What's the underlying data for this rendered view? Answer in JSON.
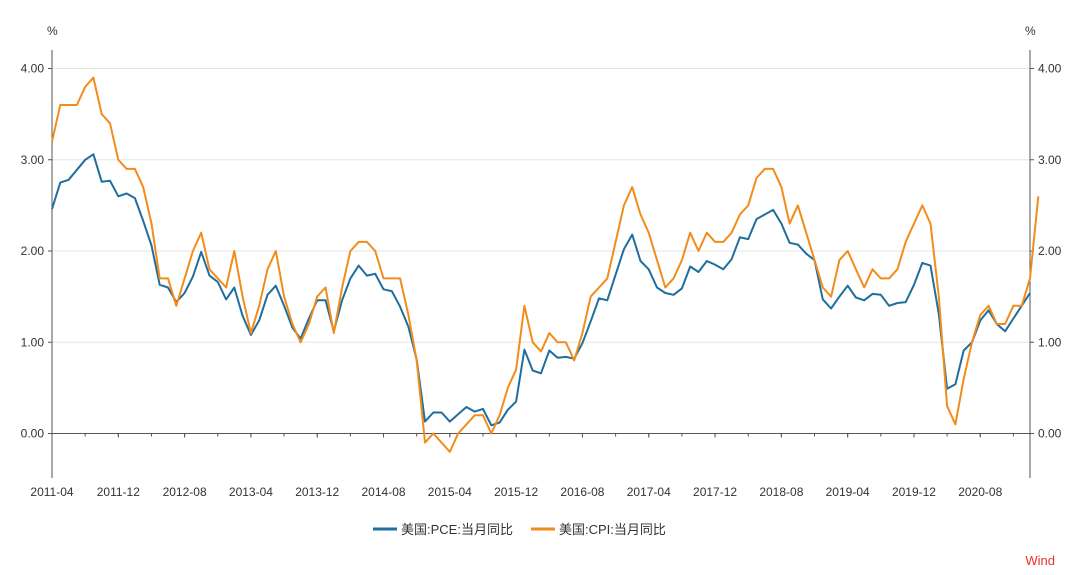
{
  "chart_data": {
    "type": "line",
    "unit_left": "%",
    "unit_right": "%",
    "ylim": [
      -0.5,
      4.2
    ],
    "y_ticks": [
      "0.00",
      "1.00",
      "2.00",
      "3.00",
      "4.00"
    ],
    "x_tick_labels": [
      "2011-04",
      "2011-12",
      "2012-08",
      "2013-04",
      "2013-12",
      "2014-08",
      "2015-04",
      "2015-12",
      "2016-08",
      "2017-04",
      "2017-12",
      "2018-08",
      "2019-04",
      "2019-12",
      "2020-08"
    ],
    "x_start": "2011-04",
    "x_end": "2021-04",
    "grid": true,
    "legend_position": "bottom",
    "series": [
      {
        "name": "美国:PCE:当月同比",
        "color": "#1f6e9e",
        "values": [
          2.46,
          2.75,
          2.78,
          2.89,
          3.0,
          3.06,
          2.76,
          2.77,
          2.6,
          2.63,
          2.58,
          2.33,
          2.06,
          1.63,
          1.6,
          1.44,
          1.54,
          1.72,
          1.99,
          1.73,
          1.66,
          1.47,
          1.6,
          1.29,
          1.08,
          1.24,
          1.52,
          1.62,
          1.4,
          1.16,
          1.04,
          1.26,
          1.46,
          1.46,
          1.12,
          1.46,
          1.7,
          1.84,
          1.73,
          1.75,
          1.58,
          1.56,
          1.39,
          1.17,
          0.81,
          0.13,
          0.23,
          0.23,
          0.13,
          0.21,
          0.29,
          0.24,
          0.27,
          0.09,
          0.12,
          0.26,
          0.35,
          0.92,
          0.69,
          0.66,
          0.91,
          0.83,
          0.84,
          0.82,
          0.99,
          1.23,
          1.48,
          1.46,
          1.74,
          2.02,
          2.18,
          1.89,
          1.8,
          1.6,
          1.54,
          1.52,
          1.59,
          1.83,
          1.77,
          1.89,
          1.85,
          1.8,
          1.91,
          2.15,
          2.13,
          2.35,
          2.4,
          2.45,
          2.3,
          2.09,
          2.07,
          1.97,
          1.9,
          1.47,
          1.37,
          1.5,
          1.62,
          1.49,
          1.46,
          1.53,
          1.52,
          1.4,
          1.43,
          1.44,
          1.63,
          1.87,
          1.84,
          1.31,
          0.49,
          0.54,
          0.91,
          1.0,
          1.24,
          1.35,
          1.2,
          1.12,
          1.26,
          1.4,
          1.54
        ]
      },
      {
        "name": "美国:CPI:当月同比",
        "color": "#f28c1a",
        "values": [
          3.2,
          3.6,
          3.6,
          3.6,
          3.8,
          3.9,
          3.5,
          3.4,
          3.0,
          2.9,
          2.9,
          2.7,
          2.3,
          1.7,
          1.7,
          1.4,
          1.7,
          2.0,
          2.2,
          1.8,
          1.7,
          1.6,
          2.0,
          1.5,
          1.1,
          1.4,
          1.8,
          2.0,
          1.5,
          1.2,
          1.0,
          1.2,
          1.5,
          1.6,
          1.1,
          1.6,
          2.0,
          2.1,
          2.1,
          2.0,
          1.7,
          1.7,
          1.7,
          1.3,
          0.8,
          -0.1,
          0.0,
          -0.1,
          -0.2,
          0.0,
          0.1,
          0.2,
          0.2,
          0.0,
          0.2,
          0.5,
          0.7,
          1.4,
          1.0,
          0.9,
          1.1,
          1.0,
          1.0,
          0.8,
          1.1,
          1.5,
          1.6,
          1.7,
          2.1,
          2.5,
          2.7,
          2.4,
          2.2,
          1.9,
          1.6,
          1.7,
          1.9,
          2.2,
          2.0,
          2.2,
          2.1,
          2.1,
          2.2,
          2.4,
          2.5,
          2.8,
          2.9,
          2.9,
          2.7,
          2.3,
          2.5,
          2.2,
          1.9,
          1.6,
          1.5,
          1.9,
          2.0,
          1.8,
          1.6,
          1.8,
          1.7,
          1.7,
          1.8,
          2.1,
          2.3,
          2.5,
          2.3,
          1.5,
          0.3,
          0.1,
          0.6,
          1.0,
          1.3,
          1.4,
          1.2,
          1.2,
          1.4,
          1.4,
          1.7,
          2.6
        ]
      }
    ]
  },
  "source_label": "Wind"
}
